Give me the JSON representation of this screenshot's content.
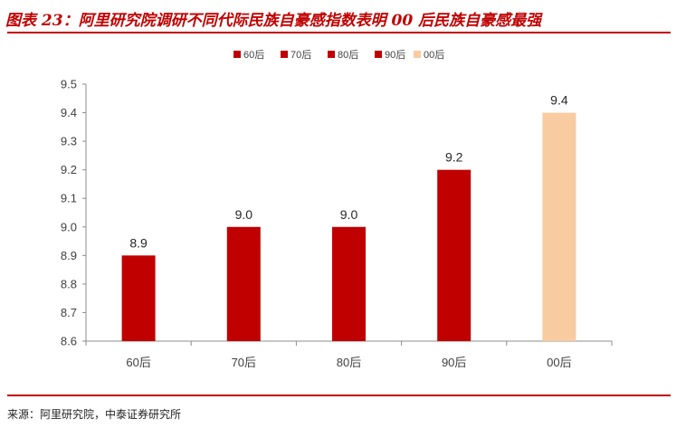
{
  "header": {
    "title": "图表 23：阿里研究院调研不同代际民族自豪感指数表明 00 后民族自豪感最强"
  },
  "footer": {
    "source": "来源：阿里研究院，中泰证券研究所"
  },
  "chart_data": {
    "type": "bar",
    "title": "",
    "xlabel": "",
    "ylabel": "",
    "categories": [
      "60后",
      "70后",
      "80后",
      "90后",
      "00后"
    ],
    "values": [
      8.9,
      9.0,
      9.0,
      9.2,
      9.4
    ],
    "value_labels": [
      "8.9",
      "9.0",
      "9.0",
      "9.2",
      "9.4"
    ],
    "colors": [
      "#c00000",
      "#c00000",
      "#c00000",
      "#c00000",
      "#f8cba1"
    ],
    "legend": [
      "60后",
      "70后",
      "80后",
      "90后",
      "00后"
    ],
    "legend_position": "top",
    "ylim": [
      8.6,
      9.5
    ],
    "yticks": [
      "8.6",
      "8.7",
      "8.8",
      "8.9",
      "9.0",
      "9.1",
      "9.2",
      "9.3",
      "9.4",
      "9.5"
    ],
    "grid": false
  }
}
